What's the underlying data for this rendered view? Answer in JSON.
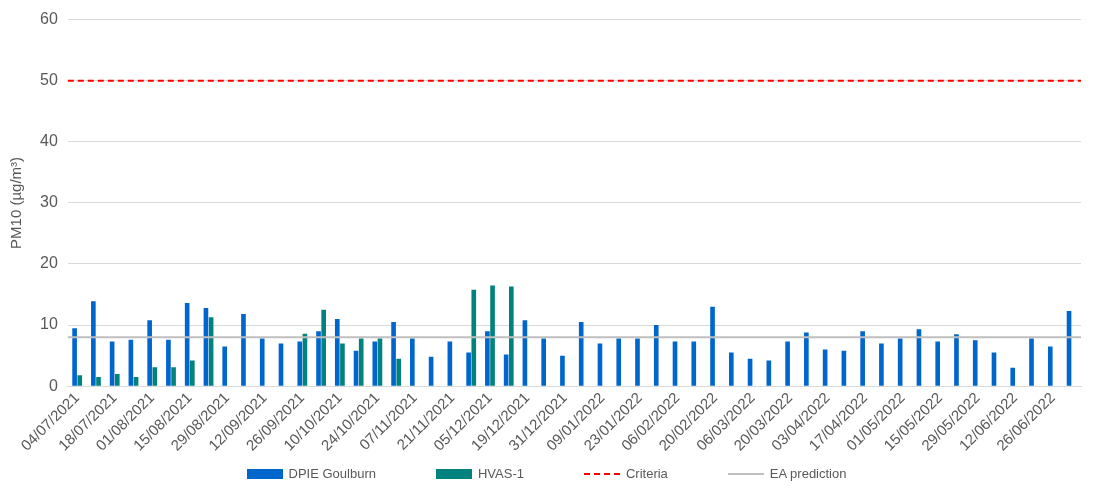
{
  "chart_data": {
    "type": "bar",
    "ylabel": "PM10 (µg/m³)",
    "categories": [
      "04/07/2021",
      null,
      "18/07/2021",
      null,
      "01/08/2021",
      null,
      "15/08/2021",
      null,
      "29/08/2021",
      null,
      "12/09/2021",
      null,
      "26/09/2021",
      null,
      "10/10/2021",
      null,
      "24/10/2021",
      null,
      "07/11/2021",
      null,
      "21/11/2021",
      null,
      "05/12/2021",
      null,
      "19/12/2021",
      null,
      "31/12/2021",
      null,
      "09/01/2022",
      null,
      "23/01/2022",
      null,
      "06/02/2022",
      null,
      "20/02/2022",
      null,
      "06/03/2022",
      null,
      "20/03/2022",
      null,
      "03/04/2022",
      null,
      "17/04/2022",
      null,
      "01/05/2022",
      null,
      "15/05/2022",
      null,
      "29/05/2022",
      null,
      "12/06/2022",
      null,
      "26/06/2022",
      null
    ],
    "series": [
      {
        "name": "DPIE Goulburn",
        "color": "#0066cc",
        "values": [
          9.5,
          13.9,
          7.3,
          7.6,
          10.8,
          7.6,
          13.6,
          12.8,
          6.5,
          11.8,
          7.8,
          7.0,
          7.3,
          9.0,
          11.0,
          5.8,
          7.3,
          10.5,
          7.8,
          4.8,
          7.3,
          5.5,
          9.0,
          5.2,
          10.8,
          7.8,
          5.0,
          10.5,
          7.0,
          7.8,
          7.8,
          10.0,
          7.3,
          7.3,
          13.0,
          5.5,
          4.5,
          4.2,
          7.3,
          8.8,
          6.0,
          5.8,
          9.0,
          7.0,
          7.8,
          9.3,
          7.3,
          8.5,
          7.5,
          5.5,
          3.0,
          7.8,
          6.5,
          12.3
        ]
      },
      {
        "name": "HVAS-1",
        "color": "#00827f",
        "values": [
          1.8,
          1.5,
          2.0,
          1.5,
          3.1,
          3.1,
          4.2,
          11.3,
          null,
          null,
          null,
          null,
          8.6,
          12.5,
          7.0,
          7.8,
          7.8,
          4.5,
          null,
          null,
          null,
          15.8,
          16.5,
          16.3,
          null,
          null,
          null,
          null,
          null,
          null,
          null,
          null,
          null,
          null,
          null,
          null,
          null,
          null,
          null,
          null,
          null,
          null,
          null,
          null,
          null,
          null,
          null,
          null,
          null,
          null,
          null,
          null,
          null,
          null
        ]
      }
    ],
    "ref_lines": [
      {
        "axis": "y",
        "value": 50,
        "label": "Criteria",
        "color": "#ff0000",
        "line_style": "dashed"
      },
      {
        "axis": "y",
        "value": 8,
        "label": "EA prediction",
        "color": "#bfbfbf",
        "line_style": "solid"
      }
    ],
    "ylim": [
      0,
      60
    ],
    "yticks": [
      0,
      10,
      20,
      30,
      40,
      50,
      60
    ],
    "grid": "y",
    "legend": "bottom"
  }
}
